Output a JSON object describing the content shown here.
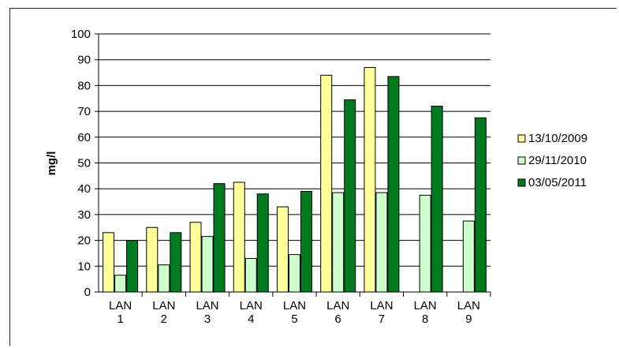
{
  "chart_data": {
    "type": "bar",
    "title": "",
    "xlabel": "",
    "ylabel": "mg/l",
    "ylim": [
      0,
      100
    ],
    "yticks": [
      0,
      10,
      20,
      30,
      40,
      50,
      60,
      70,
      80,
      90,
      100
    ],
    "categories": [
      [
        "LAN",
        "1"
      ],
      [
        "LAN",
        "2"
      ],
      [
        "LAN",
        "3"
      ],
      [
        "LAN",
        "4"
      ],
      [
        "LAN",
        "5"
      ],
      [
        "LAN",
        "6"
      ],
      [
        "LAN",
        "7"
      ],
      [
        "LAN",
        "8"
      ],
      [
        "LAN",
        "9"
      ]
    ],
    "series": [
      {
        "name": "13/10/2009",
        "color": "#ffff99",
        "values": [
          23,
          25,
          27,
          42.5,
          33,
          84,
          87,
          null,
          null
        ]
      },
      {
        "name": "29/11/2010",
        "color": "#ccffcc",
        "values": [
          6.5,
          10.5,
          21.5,
          13,
          14.5,
          38.5,
          38.5,
          37.5,
          27.5
        ]
      },
      {
        "name": "03/05/2011",
        "color": "#007a1f",
        "values": [
          20,
          23,
          42,
          38,
          39,
          74.5,
          83.5,
          72,
          67.5
        ]
      }
    ],
    "grid": true,
    "gridlines": "horizontal",
    "legend": "right",
    "plot_background": "#ffffff",
    "frame": false
  }
}
